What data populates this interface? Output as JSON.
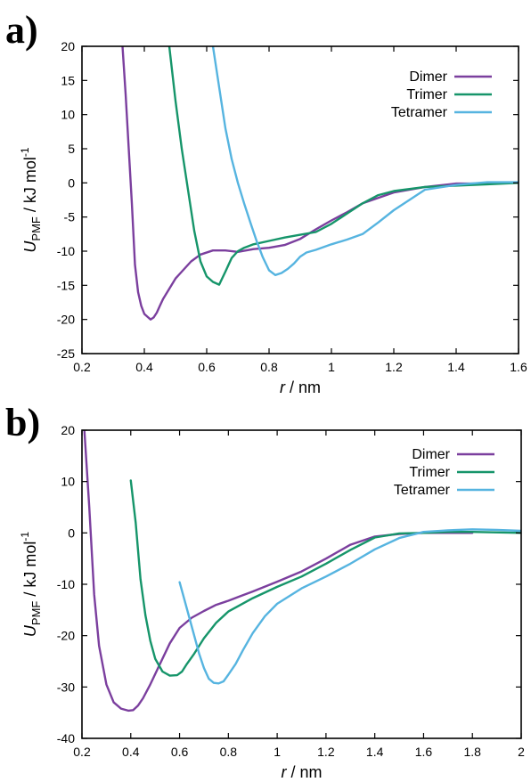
{
  "panels": [
    {
      "letter": "a)",
      "chart_data": {
        "type": "line",
        "xlabel_italic": "r",
        "xlabel_rest": " / nm",
        "ylabel_main": "U",
        "ylabel_sub": "PMF",
        "ylabel_rest": " / kJ mol",
        "ylabel_sup": "-1",
        "xlim": [
          0.2,
          1.6
        ],
        "ylim": [
          -25,
          20
        ],
        "xticks": [
          0.2,
          0.4,
          0.6,
          0.8,
          1,
          1.2,
          1.4,
          1.6
        ],
        "xtick_labels": [
          "0.2",
          "0.4",
          "0.6",
          "0.8",
          "1",
          "1.2",
          "1.4",
          "1.6"
        ],
        "yticks": [
          -25,
          -20,
          -15,
          -10,
          -5,
          0,
          5,
          10,
          15,
          20
        ],
        "ytick_labels": [
          "-25",
          "-20",
          "-15",
          "-10",
          "-5",
          "0",
          "5",
          "10",
          "15",
          "20"
        ],
        "grid": false,
        "legend_position": "top-right",
        "series": [
          {
            "name": "Dimer",
            "color": "#7b3f9e",
            "x": [
              0.33,
              0.34,
              0.35,
              0.36,
              0.37,
              0.38,
              0.39,
              0.4,
              0.41,
              0.42,
              0.43,
              0.44,
              0.45,
              0.46,
              0.48,
              0.5,
              0.52,
              0.55,
              0.58,
              0.62,
              0.66,
              0.7,
              0.75,
              0.8,
              0.85,
              0.9,
              0.95,
              1.0,
              1.05,
              1.1,
              1.2,
              1.3,
              1.4,
              1.5,
              1.6
            ],
            "y": [
              20,
              13,
              5,
              -3,
              -12,
              -16,
              -18,
              -19.2,
              -19.6,
              -20.0,
              -19.7,
              -19.0,
              -18.0,
              -17.0,
              -15.5,
              -14.0,
              -13.0,
              -11.5,
              -10.5,
              -9.9,
              -9.9,
              -10.1,
              -9.7,
              -9.5,
              -9.1,
              -8.2,
              -6.8,
              -5.5,
              -4.3,
              -3.0,
              -1.4,
              -0.6,
              -0.1,
              -0.1,
              0.1
            ]
          },
          {
            "name": "Trimer",
            "color": "#16956a",
            "x": [
              0.48,
              0.5,
              0.52,
              0.54,
              0.56,
              0.58,
              0.6,
              0.62,
              0.64,
              0.66,
              0.68,
              0.7,
              0.72,
              0.75,
              0.8,
              0.85,
              0.9,
              0.95,
              1.0,
              1.05,
              1.1,
              1.15,
              1.2,
              1.3,
              1.4,
              1.5,
              1.6
            ],
            "y": [
              20,
              12,
              5,
              -1,
              -7,
              -11.5,
              -13.7,
              -14.5,
              -14.9,
              -13.0,
              -11.0,
              -10.0,
              -9.5,
              -9.0,
              -8.5,
              -8.0,
              -7.6,
              -7.2,
              -6.0,
              -4.5,
              -3.0,
              -1.8,
              -1.2,
              -0.6,
              -0.4,
              -0.2,
              0.0
            ]
          },
          {
            "name": "Tetramer",
            "color": "#56b4e0",
            "x": [
              0.62,
              0.64,
              0.66,
              0.68,
              0.7,
              0.72,
              0.74,
              0.76,
              0.78,
              0.8,
              0.82,
              0.84,
              0.86,
              0.88,
              0.9,
              0.92,
              0.95,
              1.0,
              1.05,
              1.1,
              1.15,
              1.2,
              1.25,
              1.3,
              1.4,
              1.5,
              1.6
            ],
            "y": [
              20,
              14,
              8,
              3.5,
              0,
              -3,
              -5.8,
              -8.5,
              -10.9,
              -12.8,
              -13.5,
              -13.2,
              -12.6,
              -11.8,
              -10.8,
              -10.2,
              -9.8,
              -9.0,
              -8.3,
              -7.5,
              -5.8,
              -4.0,
              -2.5,
              -1.0,
              -0.3,
              0.1,
              0.1
            ]
          }
        ]
      }
    },
    {
      "letter": "b)",
      "chart_data": {
        "type": "line",
        "xlabel_italic": "r",
        "xlabel_rest": " / nm",
        "ylabel_main": "U",
        "ylabel_sub": "PMF",
        "ylabel_rest": " / kJ mol",
        "ylabel_sup": "-1",
        "xlim": [
          0.2,
          2.0
        ],
        "ylim": [
          -40,
          20
        ],
        "xticks": [
          0.2,
          0.4,
          0.6,
          0.8,
          1,
          1.2,
          1.4,
          1.6,
          1.8,
          2
        ],
        "xtick_labels": [
          "0.2",
          "0.4",
          "0.6",
          "0.8",
          "1",
          "1.2",
          "1.4",
          "1.6",
          "1.8",
          "2"
        ],
        "yticks": [
          -40,
          -30,
          -20,
          -10,
          0,
          10,
          20
        ],
        "ytick_labels": [
          "-40",
          "-30",
          "-20",
          "-10",
          "0",
          "10",
          "20"
        ],
        "grid": false,
        "legend_position": "top-right",
        "series": [
          {
            "name": "Dimer",
            "color": "#7b3f9e",
            "x": [
              0.21,
              0.23,
              0.25,
              0.27,
              0.3,
              0.33,
              0.36,
              0.39,
              0.41,
              0.43,
              0.45,
              0.48,
              0.52,
              0.56,
              0.6,
              0.65,
              0.7,
              0.75,
              0.8,
              0.85,
              0.9,
              1.0,
              1.1,
              1.2,
              1.3,
              1.4,
              1.5,
              1.6,
              1.7,
              1.8
            ],
            "y": [
              20,
              5,
              -12,
              -22,
              -29.5,
              -33,
              -34.2,
              -34.6,
              -34.5,
              -33.6,
              -32.2,
              -29.5,
              -25.5,
              -21.5,
              -18.5,
              -16.5,
              -15.2,
              -14.0,
              -13.2,
              -12.3,
              -11.4,
              -9.5,
              -7.5,
              -5.0,
              -2.3,
              -0.7,
              -0.2,
              0.0,
              0.0,
              0.0
            ]
          },
          {
            "name": "Trimer",
            "color": "#16956a",
            "x": [
              0.4,
              0.42,
              0.44,
              0.46,
              0.48,
              0.5,
              0.53,
              0.56,
              0.59,
              0.61,
              0.63,
              0.66,
              0.7,
              0.75,
              0.8,
              0.85,
              0.9,
              1.0,
              1.1,
              1.2,
              1.3,
              1.4,
              1.5,
              1.6,
              1.7,
              1.8,
              2.0
            ],
            "y": [
              10.2,
              2,
              -9,
              -16,
              -21,
              -24.5,
              -27,
              -27.8,
              -27.7,
              -27.0,
              -25.5,
              -23.5,
              -20.5,
              -17.5,
              -15.3,
              -14.0,
              -12.7,
              -10.5,
              -8.5,
              -6.0,
              -3.3,
              -0.9,
              -0.1,
              0.0,
              0.2,
              0.2,
              0.0
            ]
          },
          {
            "name": "Tetramer",
            "color": "#56b4e0",
            "x": [
              0.6,
              0.62,
              0.64,
              0.66,
              0.68,
              0.7,
              0.72,
              0.74,
              0.76,
              0.78,
              0.8,
              0.83,
              0.86,
              0.9,
              0.95,
              1.0,
              1.1,
              1.2,
              1.3,
              1.4,
              1.5,
              1.6,
              1.7,
              1.8,
              1.9,
              2.0
            ],
            "y": [
              -9.6,
              -13,
              -16.5,
              -20,
              -23.5,
              -26.3,
              -28.4,
              -29.2,
              -29.3,
              -28.9,
              -27.6,
              -25.5,
              -22.8,
              -19.5,
              -16.2,
              -13.8,
              -10.8,
              -8.5,
              -6.0,
              -3.2,
              -1.0,
              0.2,
              0.5,
              0.7,
              0.6,
              0.4
            ]
          }
        ]
      }
    }
  ]
}
